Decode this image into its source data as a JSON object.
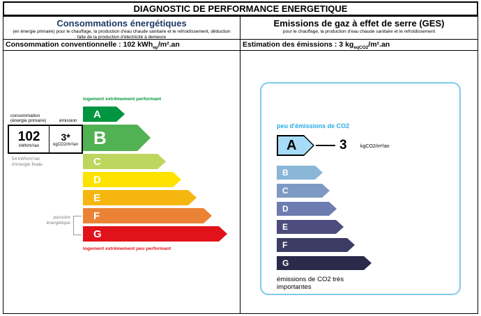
{
  "title": "DIAGNOSTIC DE PERFORMANCE ENERGETIQUE",
  "energy": {
    "header": "Consommations énergétiques",
    "subtitle": "(en énergie primaire) pour le chauffage, la production d'eau chaude sanitaire et le refroidissement, déduction faite de la production d'électricité à demeure",
    "stat_label": "Consommation conventionnelle :",
    "stat_value": "102",
    "stat_unit_pre": "kWh",
    "stat_unit_sub": "ep",
    "stat_unit_post": "/m².an",
    "top_label": "logement extrêmement performant",
    "top_label_color": "#009640",
    "bottom_label": "logement extrêmement peu performant",
    "bottom_label_color": "#e2121a",
    "passoire_label": "passoire énergétique",
    "final_energy_note": "54 kWh/m²/an d'énergie finale",
    "value_box": {
      "label_col1_line1": "consommation",
      "label_col1_line2": "(énergie primaire)",
      "label_col2": "émission",
      "value1": "102",
      "unit1": "kWh/m²/an",
      "value2": "3*",
      "unit2": "kgCO2/m²/an"
    },
    "classes": [
      {
        "letter": "A",
        "color": "#009540"
      },
      {
        "letter": "B",
        "color": "#52b153"
      },
      {
        "letter": "C",
        "color": "#bdd65e"
      },
      {
        "letter": "D",
        "color": "#ffe300"
      },
      {
        "letter": "E",
        "color": "#f5b70f"
      },
      {
        "letter": "F",
        "color": "#ec8235"
      },
      {
        "letter": "G",
        "color": "#e2121a"
      }
    ]
  },
  "ges": {
    "header": "Emissions de gaz à effet de serre (GES)",
    "subtitle": "pour le chauffage, la production d'eau chaude sanitaire et le refroidissement",
    "stat_label": "Estimation des émissions :",
    "stat_value": "3",
    "stat_unit_pre": "kg",
    "stat_unit_sub": "eqCO2",
    "stat_unit_post": "/m².an",
    "accent_color": "#29abe2",
    "border_color": "#7fc9ec",
    "top_label": "peu d'émissions de CO2",
    "bottom_label": "émissions de CO2 très importantes",
    "pointer_value": "3",
    "pointer_unit": "kgCO2/m²/an",
    "classes": [
      {
        "letter": "A",
        "color": "#a6dcf8"
      },
      {
        "letter": "B",
        "color": "#8ab6d8"
      },
      {
        "letter": "C",
        "color": "#7e99c3"
      },
      {
        "letter": "D",
        "color": "#6d7cb0"
      },
      {
        "letter": "E",
        "color": "#4c4d7c"
      },
      {
        "letter": "F",
        "color": "#3d3c64"
      },
      {
        "letter": "G",
        "color": "#2b2a4a"
      }
    ]
  },
  "chart_data": [
    {
      "type": "bar",
      "subtype": "rating-scale",
      "title": "Consommations énergétiques",
      "categories": [
        "A",
        "B",
        "C",
        "D",
        "E",
        "F",
        "G"
      ],
      "colors": [
        "#009540",
        "#52b153",
        "#bdd65e",
        "#ffe300",
        "#f5b70f",
        "#ec8235",
        "#e2121a"
      ],
      "highlighted_category": "B",
      "value": 102,
      "unit": "kWhep/m².an",
      "secondary_value": "3*",
      "secondary_unit": "kgCO2/m²/an",
      "final_energy_note": "54 kWh/m²/an d'énergie finale",
      "annotations": [
        "logement extrêmement performant",
        "logement extrêmement peu performant",
        "passoire énergétique"
      ],
      "legend_position": "none",
      "grid": false
    },
    {
      "type": "bar",
      "subtype": "rating-scale",
      "title": "Emissions de gaz à effet de serre (GES)",
      "categories": [
        "A",
        "B",
        "C",
        "D",
        "E",
        "F",
        "G"
      ],
      "colors": [
        "#a6dcf8",
        "#8ab6d8",
        "#7e99c3",
        "#6d7cb0",
        "#4c4d7c",
        "#3d3c64",
        "#2b2a4a"
      ],
      "highlighted_category": "A",
      "value": 3,
      "unit": "kgCO2/m²/an",
      "annotations": [
        "peu d'émissions de CO2",
        "émissions de CO2 très importantes"
      ],
      "legend_position": "none",
      "grid": false
    }
  ]
}
